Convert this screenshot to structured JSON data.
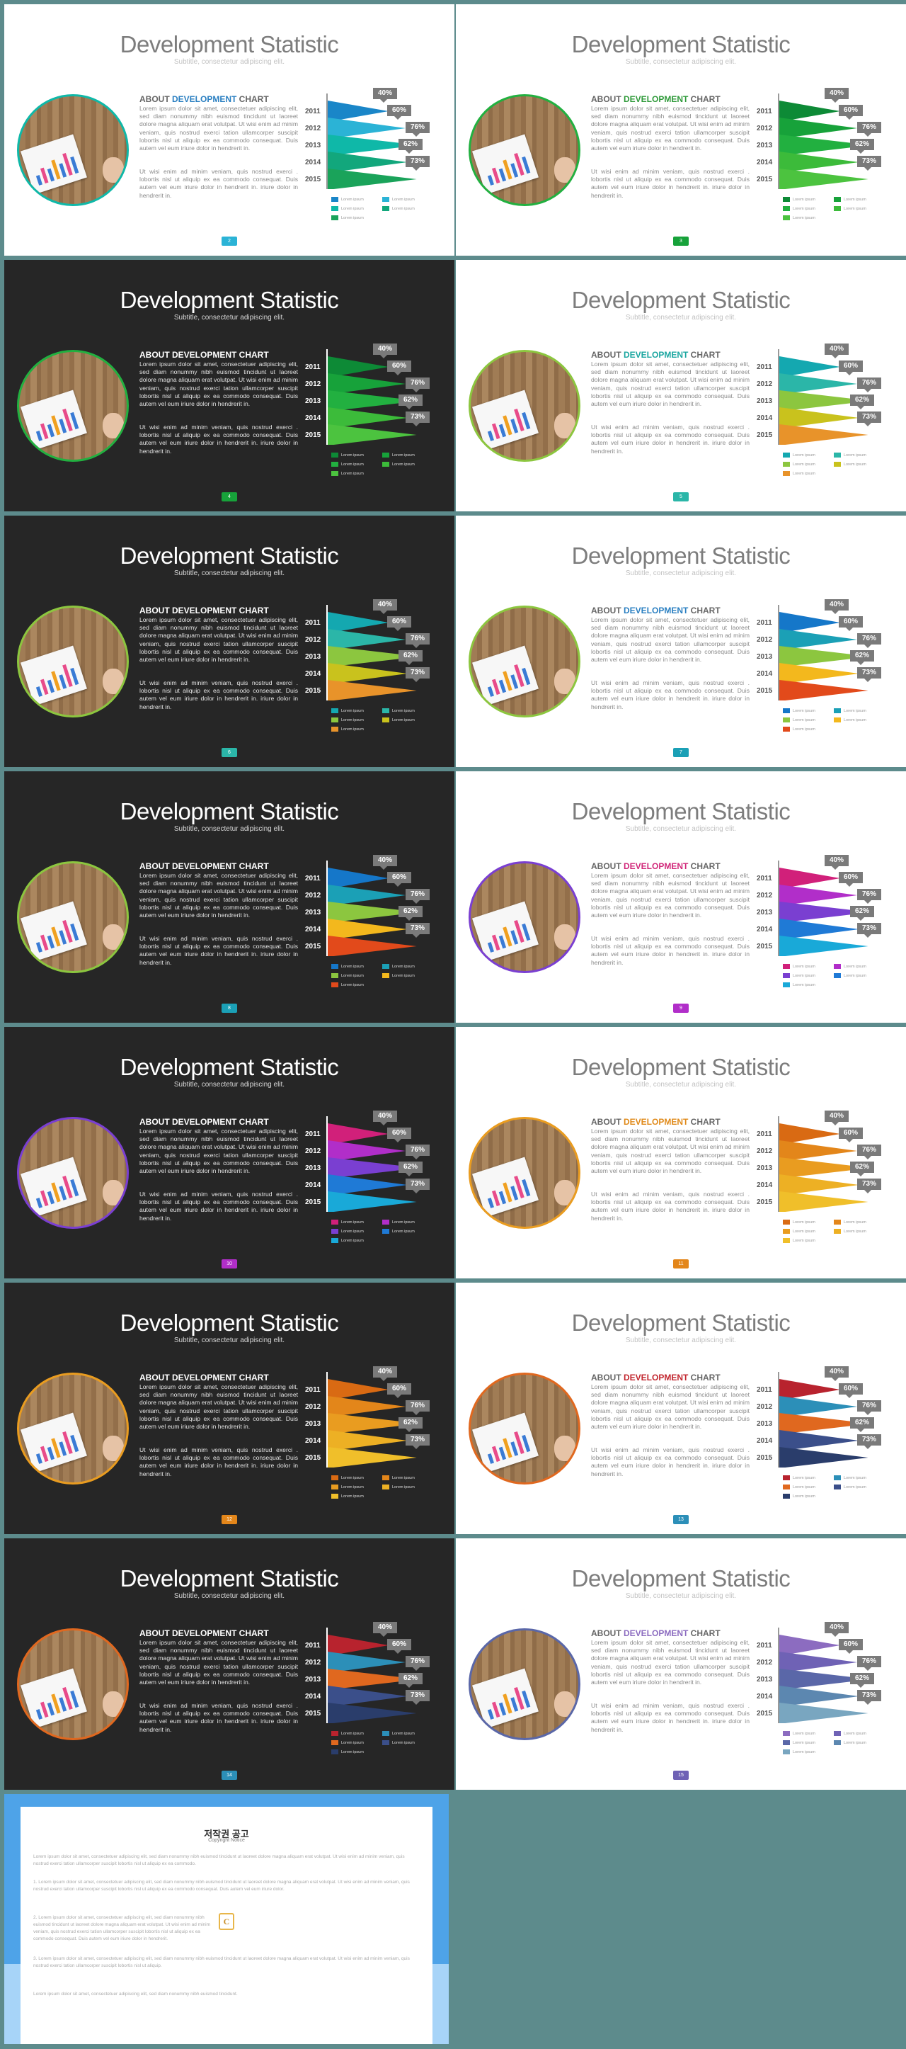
{
  "slide_common": {
    "title": "Development Statistic",
    "subtitle": "Subtitle, consectetur adipiscing elit.",
    "heading_about": "ABOUT ",
    "heading_dev": "DEVELOPMENT",
    "heading_chart": " CHART",
    "para1": "Lorem ipsum dolor sit amet, consectetuer adipiscing elit, sed diam nonummy nibh euismod tincidunt ut laoreet dolore magna aliquam erat volutpat. Ut wisi enim ad minim veniam, quis nostrud exerci tation ullamcorper suscipit lobortis nisl ut aliquip ex ea commodo consequat. Duis autem vel eum iriure dolor in hendrerit in.",
    "para2": "Ut wisi enim ad minim veniam, quis nostrud exerci . lobortis nisl ut aliquip ex ea commodo consequat. Duis autem vel eum iriure dolor in hendrerit in. iriure dolor in hendrerit in.",
    "years": [
      "2011",
      "2012",
      "2013",
      "2014",
      "2015"
    ],
    "percent_labels": [
      "40%",
      "60%",
      "76%",
      "62%",
      "73%"
    ],
    "legend_text": "Lorem ipsum"
  },
  "chart_data": {
    "type": "bar",
    "categories": [
      "2011",
      "2012",
      "2013",
      "2014",
      "2015"
    ],
    "values": [
      40,
      60,
      76,
      62,
      73
    ],
    "ylim": [
      0,
      100
    ]
  },
  "slides": [
    {
      "page": "2",
      "theme": "light",
      "accent": "#2a7fc1",
      "colors": [
        "#1a86c8",
        "#2bb3d6",
        "#0fb8a8",
        "#12a77c",
        "#1aa35a"
      ]
    },
    {
      "page": "3",
      "theme": "light",
      "accent": "#2f9a3a",
      "colors": [
        "#0d8a36",
        "#17a23a",
        "#22b040",
        "#3cbb3a",
        "#4cc33f"
      ]
    },
    {
      "page": "4",
      "theme": "dark",
      "accent": "#ffffff",
      "colors": [
        "#0d8a36",
        "#17a23a",
        "#22b040",
        "#3cbb3a",
        "#4cc33f"
      ]
    },
    {
      "page": "5",
      "theme": "light",
      "accent": "#1aa6a0",
      "colors": [
        "#14a8b0",
        "#2bb6a8",
        "#8cc63f",
        "#c9c21d",
        "#e8932a"
      ]
    },
    {
      "page": "6",
      "theme": "dark",
      "accent": "#ffffff",
      "colors": [
        "#14a8b0",
        "#2bb6a8",
        "#8cc63f",
        "#c9c21d",
        "#e8932a"
      ]
    },
    {
      "page": "7",
      "theme": "light",
      "accent": "#2a7fc1",
      "colors": [
        "#1577c9",
        "#1ba0b6",
        "#8cc63f",
        "#f3b81d",
        "#e24a1b"
      ]
    },
    {
      "page": "8",
      "theme": "dark",
      "accent": "#ffffff",
      "colors": [
        "#1577c9",
        "#1ba0b6",
        "#8cc63f",
        "#f3b81d",
        "#e24a1b"
      ]
    },
    {
      "page": "9",
      "theme": "light",
      "accent": "#d1287a",
      "colors": [
        "#d1207a",
        "#b12ec9",
        "#7a3fd1",
        "#1f7ad6",
        "#19a9d8"
      ]
    },
    {
      "page": "10",
      "theme": "dark",
      "accent": "#ffffff",
      "colors": [
        "#d1207a",
        "#b12ec9",
        "#7a3fd1",
        "#1f7ad6",
        "#19a9d8"
      ]
    },
    {
      "page": "11",
      "theme": "light",
      "accent": "#e08a1a",
      "colors": [
        "#d96a13",
        "#e3861a",
        "#e99c20",
        "#edb024",
        "#f0bf2a"
      ]
    },
    {
      "page": "12",
      "theme": "dark",
      "accent": "#ffffff",
      "colors": [
        "#d96a13",
        "#e3861a",
        "#e99c20",
        "#edb024",
        "#f0bf2a"
      ]
    },
    {
      "page": "13",
      "theme": "light",
      "accent": "#c2262e",
      "colors": [
        "#b8232e",
        "#2c8fb8",
        "#e0681f",
        "#3b4f8a",
        "#2a3d6b"
      ]
    },
    {
      "page": "14",
      "theme": "dark",
      "accent": "#ffffff",
      "colors": [
        "#b8232e",
        "#2c8fb8",
        "#e0681f",
        "#3b4f8a",
        "#2a3d6b"
      ]
    },
    {
      "page": "15",
      "theme": "light",
      "accent": "#8c6cc0",
      "colors": [
        "#8c6cc0",
        "#6f62b5",
        "#5a67a8",
        "#5c87b0",
        "#79a6c0"
      ]
    }
  ],
  "notice": {
    "title": "저작권 공고",
    "subtitle": "Copyright Notice",
    "logo_letter": "C",
    "paragraphs": [
      "Lorem ipsum dolor sit amet, consectetuer adipiscing elit, sed diam nonummy nibh euismod tincidunt ut laoreet dolore magna aliquam erat volutpat. Ut wisi enim ad minim veniam, quis nostrud exerci tation ullamcorper suscipit lobortis nisl ut aliquip ex ea commodo.",
      "1. Lorem ipsum dolor sit amet, consectetuer adipiscing elit, sed diam nonummy nibh euismod tincidunt ut laoreet dolore magna aliquam erat volutpat. Ut wisi enim ad minim veniam, quis nostrud exerci tation ullamcorper suscipit lobortis nisl ut aliquip ex ea commodo consequat. Duis autem vel eum iriure dolor.",
      "2. Lorem ipsum dolor sit amet, consectetuer adipiscing elit, sed diam nonummy nibh euismod tincidunt ut laoreet dolore magna aliquam erat volutpat. Ut wisi enim ad minim veniam, quis nostrud exerci tation ullamcorper suscipit lobortis nisl ut aliquip ex ea commodo consequat. Duis autem vel eum iriure dolor in hendrerit.",
      "3. Lorem ipsum dolor sit amet, consectetuer adipiscing elit, sed diam nonummy nibh euismod tincidunt ut laoreet dolore magna aliquam erat volutpat. Ut wisi enim ad minim veniam, quis nostrud exerci tation ullamcorper suscipit lobortis nisl ut aliquip.",
      "Lorem ipsum dolor sit amet, consectetuer adipiscing elit, sed diam nonummy nibh euismod tincidunt."
    ]
  }
}
